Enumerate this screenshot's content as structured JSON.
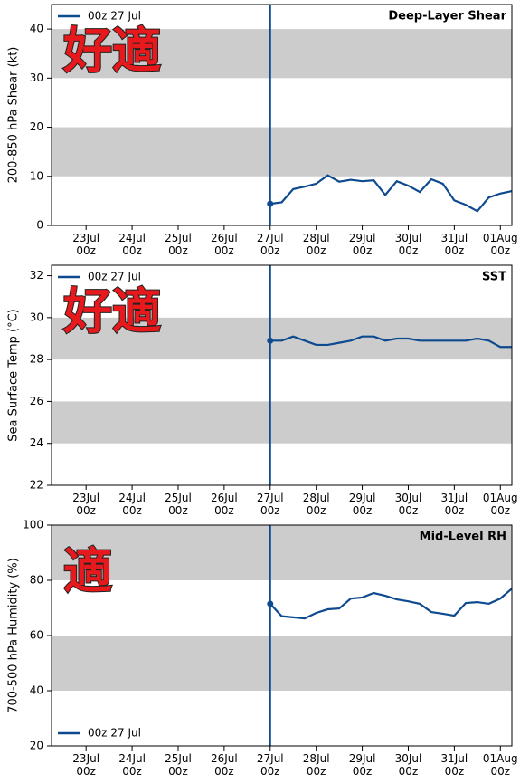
{
  "chart_data": [
    {
      "type": "line",
      "title": "Deep-Layer Shear",
      "ylabel": "200-850 hPa Shear (kt)",
      "annotation": "好適",
      "legend": "upper left",
      "vline": "27Jul 00z",
      "bands": [
        [
          10,
          20
        ],
        [
          30,
          40
        ]
      ],
      "xlim": [
        "22Jul 06z",
        "01Aug 06z"
      ],
      "xticks": [
        "23Jul\n00z",
        "24Jul\n00z",
        "25Jul\n00z",
        "26Jul\n00z",
        "27Jul\n00z",
        "28Jul\n00z",
        "29Jul\n00z",
        "30Jul\n00z",
        "31Jul\n00z",
        "01Aug\n00z"
      ],
      "ylim": [
        0,
        45
      ],
      "yticks": [
        0,
        10,
        20,
        30,
        40
      ],
      "x": [
        "27Jul 00z",
        "27Jul 06z",
        "27Jul 12z",
        "27Jul 18z",
        "28Jul 00z",
        "28Jul 06z",
        "28Jul 12z",
        "28Jul 18z",
        "29Jul 00z",
        "29Jul 06z",
        "29Jul 12z",
        "29Jul 18z",
        "30Jul 00z",
        "30Jul 06z",
        "30Jul 12z",
        "30Jul 18z",
        "31Jul 00z",
        "31Jul 06z",
        "31Jul 12z",
        "31Jul 18z",
        "01Aug 00z",
        "01Aug 06z"
      ],
      "series": [
        {
          "name": "00z 27 Jul",
          "color": "#0d4a8f",
          "values": [
            4.4,
            4.7,
            7.4,
            7.9,
            8.5,
            10.2,
            8.9,
            9.3,
            9.0,
            9.2,
            6.2,
            9.0,
            8.1,
            6.8,
            9.4,
            8.5,
            5.1,
            4.2,
            2.9,
            5.7,
            6.5,
            7.0
          ]
        }
      ]
    },
    {
      "type": "line",
      "title": "SST",
      "ylabel": "Sea Surface Temp (°C)",
      "annotation": "好適",
      "legend": "upper left",
      "vline": "27Jul 00z",
      "bands": [
        [
          24,
          26
        ],
        [
          28,
          30
        ]
      ],
      "xlim": [
        "22Jul 06z",
        "01Aug 06z"
      ],
      "xticks": [
        "23Jul\n00z",
        "24Jul\n00z",
        "25Jul\n00z",
        "26Jul\n00z",
        "27Jul\n00z",
        "28Jul\n00z",
        "29Jul\n00z",
        "30Jul\n00z",
        "31Jul\n00z",
        "01Aug\n00z"
      ],
      "ylim": [
        22,
        32.5
      ],
      "yticks": [
        22,
        24,
        26,
        28,
        30,
        32
      ],
      "x": [
        "27Jul 00z",
        "27Jul 06z",
        "27Jul 12z",
        "27Jul 18z",
        "28Jul 00z",
        "28Jul 06z",
        "28Jul 12z",
        "28Jul 18z",
        "29Jul 00z",
        "29Jul 06z",
        "29Jul 12z",
        "29Jul 18z",
        "30Jul 00z",
        "30Jul 06z",
        "30Jul 12z",
        "30Jul 18z",
        "31Jul 00z",
        "31Jul 06z",
        "31Jul 12z",
        "31Jul 18z",
        "01Aug 00z",
        "01Aug 06z"
      ],
      "series": [
        {
          "name": "00z 27 Jul",
          "color": "#0d4a8f",
          "values": [
            28.9,
            28.9,
            29.1,
            28.9,
            28.7,
            28.7,
            28.8,
            28.9,
            29.1,
            29.1,
            28.9,
            29.0,
            29.0,
            28.9,
            28.9,
            28.9,
            28.9,
            28.9,
            29.0,
            28.9,
            28.6,
            28.6
          ]
        }
      ]
    },
    {
      "type": "line",
      "title": "Mid-Level RH",
      "ylabel": "700-500 hPa Humidity (%)",
      "annotation": "適",
      "legend": "lower left",
      "vline": "27Jul 00z",
      "bands": [
        [
          40,
          60
        ],
        [
          80,
          100
        ]
      ],
      "xlim": [
        "22Jul 06z",
        "01Aug 06z"
      ],
      "xticks": [
        "23Jul\n00z",
        "24Jul\n00z",
        "25Jul\n00z",
        "26Jul\n00z",
        "27Jul\n00z",
        "28Jul\n00z",
        "29Jul\n00z",
        "30Jul\n00z",
        "31Jul\n00z",
        "01Aug\n00z"
      ],
      "ylim": [
        20,
        100
      ],
      "yticks": [
        20,
        40,
        60,
        80,
        100
      ],
      "x": [
        "27Jul 00z",
        "27Jul 06z",
        "27Jul 12z",
        "27Jul 18z",
        "28Jul 00z",
        "28Jul 06z",
        "28Jul 12z",
        "28Jul 18z",
        "29Jul 00z",
        "29Jul 06z",
        "29Jul 12z",
        "29Jul 18z",
        "30Jul 00z",
        "30Jul 06z",
        "30Jul 12z",
        "30Jul 18z",
        "31Jul 00z",
        "31Jul 06z",
        "31Jul 12z",
        "31Jul 18z",
        "01Aug 00z",
        "01Aug 06z"
      ],
      "series": [
        {
          "name": "00z 27 Jul",
          "color": "#0d4a8f",
          "values": [
            71.5,
            67.0,
            66.6,
            66.2,
            68.2,
            69.5,
            69.8,
            73.4,
            73.8,
            75.4,
            74.4,
            73.1,
            72.4,
            71.5,
            68.5,
            67.9,
            67.2,
            71.8,
            72.1,
            71.5,
            73.4,
            77.0
          ]
        }
      ]
    }
  ]
}
